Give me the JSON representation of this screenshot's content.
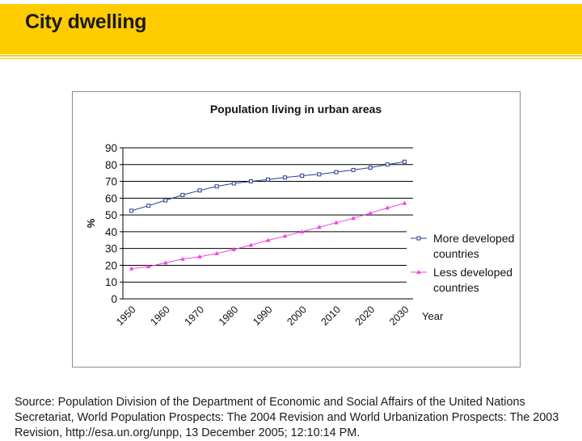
{
  "slide": {
    "title": "City dwelling",
    "source": "Source: Population Division of the Department of Economic and Social Affairs of the United Nations Secretariat, World Population Prospects: The 2004 Revision and World Urbanization Prospects: The 2003 Revision, http://esa.un.org/unpp, 13 December 2005; 12:10:14 PM."
  },
  "colors": {
    "header": "#ffcc00",
    "more_developed": "#2b3d8f",
    "less_developed": "#ee44dd"
  },
  "chart_data": {
    "type": "line",
    "title": "Population living in urban areas",
    "xlabel": "Year",
    "ylabel": "%",
    "ylim": [
      0,
      90
    ],
    "yticks": [
      "0",
      "10",
      "20",
      "30",
      "40",
      "50",
      "60",
      "70",
      "80",
      "90"
    ],
    "xtick_labels": [
      "1950",
      "1960",
      "1970",
      "1980",
      "1990",
      "2000",
      "2010",
      "2020",
      "2030"
    ],
    "x": [
      1950,
      1955,
      1960,
      1965,
      1970,
      1975,
      1980,
      1985,
      1990,
      1995,
      2000,
      2005,
      2010,
      2015,
      2020,
      2025,
      2030
    ],
    "grid": true,
    "legend_position": "right",
    "series": [
      {
        "name": "More developed countries",
        "legend_lines": [
          "More developed",
          "countries"
        ],
        "marker": "square",
        "values": [
          52.5,
          55.5,
          58.7,
          61.9,
          64.6,
          67.0,
          68.8,
          70.0,
          71.1,
          72.3,
          73.4,
          74.2,
          75.5,
          76.8,
          78.2,
          80.0,
          81.7
        ]
      },
      {
        "name": "Less developed countries",
        "legend_lines": [
          "Less developed",
          "countries"
        ],
        "marker": "triangle",
        "values": [
          18.0,
          19.2,
          21.5,
          23.7,
          25.1,
          27.0,
          29.4,
          32.0,
          34.9,
          37.4,
          40.0,
          42.7,
          45.4,
          48.0,
          51.1,
          54.2,
          57.0
        ]
      }
    ]
  }
}
